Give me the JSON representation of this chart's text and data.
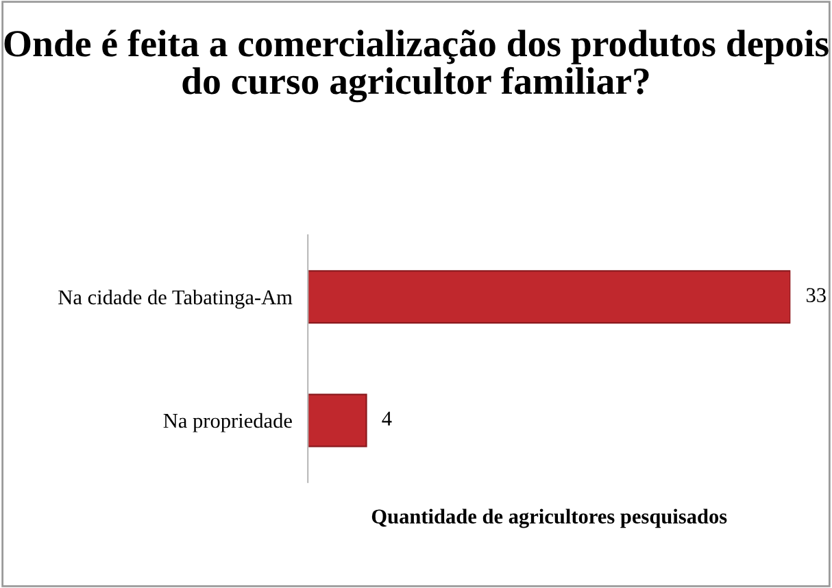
{
  "chart_data": {
    "type": "bar",
    "orientation": "horizontal",
    "title": "Onde é feita a comercialização dos produtos depois do curso agricultor familiar?",
    "xlabel": "Quantidade de agricultores pesquisados",
    "categories": [
      "Na cidade de Tabatinga-Am",
      "Na propriedade"
    ],
    "values": [
      33,
      4
    ],
    "color": "#c0282d",
    "data_labels": true,
    "grid": false,
    "legend": false
  }
}
